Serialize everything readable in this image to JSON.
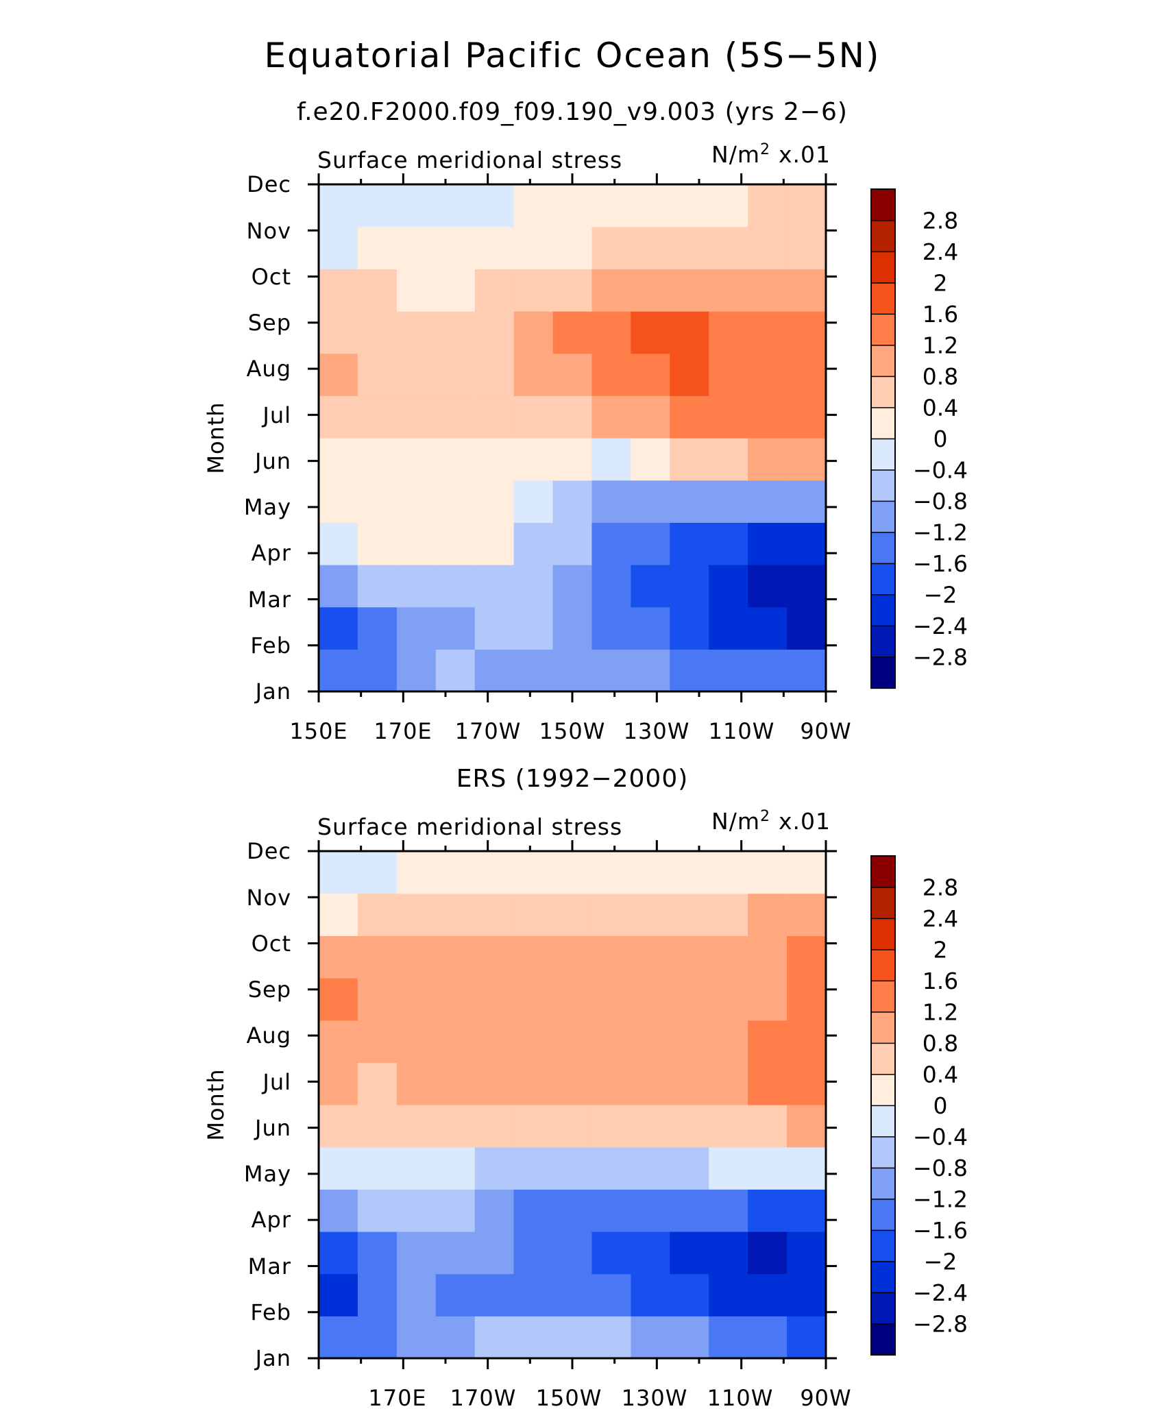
{
  "page": {
    "title": "Equatorial Pacific Ocean (5S−5N)"
  },
  "panels": [
    {
      "subtitle": "f.e20.F2000.f09_f09.190_v9.003 (yrs 2−6)",
      "left_label": "Surface meridional stress",
      "unit_base": "N/m",
      "unit_exp": "2",
      "unit_scale": "x.01",
      "ylabel": "Month",
      "x_tick_labels": [
        "150E",
        "170E",
        "170W",
        "150W",
        "130W",
        "110W",
        "90W"
      ]
    },
    {
      "subtitle": "ERS (1992−2000)",
      "left_label": "Surface meridional stress",
      "unit_base": "N/m",
      "unit_exp": "2",
      "unit_scale": "x.01",
      "ylabel": "Month",
      "x_tick_labels": [
        "170E",
        "170W",
        "150W",
        "130W",
        "110W",
        "90W"
      ]
    }
  ],
  "colorbar": {
    "colors": [
      "#000080",
      "#0018b4",
      "#0030d8",
      "#1850f0",
      "#4a78f5",
      "#7fa0f5",
      "#b3c8fa",
      "#dbe9fd",
      "#ffeedd",
      "#ffcdb2",
      "#ffa880",
      "#ff7e4a",
      "#f5521c",
      "#dc3000",
      "#b42200",
      "#8a0000"
    ],
    "tick_labels": [
      "−2.8",
      "−2.4",
      "−2",
      "−1.6",
      "−1.2",
      "−0.8",
      "−0.4",
      "0",
      "0.4",
      "0.8",
      "1.2",
      "1.6",
      "2",
      "2.4",
      "2.8"
    ]
  },
  "chart_data": [
    {
      "type": "heatmap",
      "title": "Equatorial Pacific Ocean (5S−5N)",
      "subtitle": "f.e20.F2000.f09_f09.190_v9.003 (yrs 2−6)",
      "variable": "Surface meridional stress",
      "units": "N/m^2 x.01",
      "xlabel": "",
      "ylabel": "Month",
      "x_degE": [
        150,
        160,
        170,
        180,
        190,
        200,
        210,
        220,
        230,
        240,
        250,
        260,
        270
      ],
      "x_range_degE": [
        150,
        270
      ],
      "x_ticks": [
        "150E",
        "170E",
        "170W",
        "150W",
        "130W",
        "110W",
        "90W"
      ],
      "y": [
        "Jan",
        "Feb",
        "Mar",
        "Apr",
        "May",
        "Jun",
        "Jul",
        "Aug",
        "Sep",
        "Oct",
        "Nov",
        "Dec"
      ],
      "levels": [
        -2.8,
        -2.4,
        -2,
        -1.6,
        -1.2,
        -0.8,
        -0.4,
        0,
        0.4,
        0.8,
        1.2,
        1.6,
        2,
        2.4,
        2.8
      ],
      "values": [
        [
          -1.6,
          -1.3,
          -0.9,
          -0.8,
          -0.9,
          -0.9,
          -0.9,
          -1.0,
          -1.2,
          -1.3,
          -1.4,
          -1.5,
          -1.6
        ],
        [
          -1.7,
          -1.5,
          -1.1,
          -0.9,
          -0.7,
          -0.8,
          -1.0,
          -1.3,
          -1.6,
          -1.9,
          -2.1,
          -2.3,
          -2.5
        ],
        [
          -0.9,
          -0.6,
          -0.5,
          -0.6,
          -0.5,
          -0.7,
          -1.0,
          -1.4,
          -1.7,
          -2.0,
          -2.3,
          -2.6,
          -2.7
        ],
        [
          -0.3,
          0.1,
          0.2,
          0.2,
          0.1,
          -0.5,
          -0.8,
          -1.3,
          -1.6,
          -1.8,
          -2.0,
          -2.1,
          -2.1
        ],
        [
          0.2,
          0.3,
          0.3,
          0.2,
          0.1,
          -0.3,
          -0.6,
          -0.9,
          -1.0,
          -1.0,
          -0.9,
          -0.9,
          -1.0
        ],
        [
          0.3,
          0.3,
          0.3,
          0.3,
          0.3,
          0.2,
          0.0,
          -0.1,
          0.2,
          0.5,
          0.7,
          0.8,
          0.8
        ],
        [
          0.6,
          0.4,
          0.4,
          0.4,
          0.5,
          0.6,
          0.7,
          0.9,
          1.0,
          1.3,
          1.4,
          1.5,
          1.5
        ],
        [
          0.8,
          0.6,
          0.5,
          0.5,
          0.7,
          0.8,
          1.1,
          1.3,
          1.5,
          1.6,
          1.5,
          1.5,
          1.4
        ],
        [
          0.6,
          0.5,
          0.5,
          0.5,
          0.7,
          0.8,
          1.2,
          1.5,
          1.7,
          1.6,
          1.4,
          1.3,
          1.3
        ],
        [
          0.6,
          0.4,
          0.3,
          0.3,
          0.4,
          0.5,
          0.6,
          0.8,
          0.9,
          0.9,
          0.9,
          0.9,
          0.9
        ],
        [
          -0.1,
          0.1,
          0.2,
          0.3,
          0.3,
          0.3,
          0.3,
          0.4,
          0.5,
          0.6,
          0.6,
          0.7,
          0.7
        ],
        [
          -0.2,
          -0.2,
          -0.1,
          -0.2,
          -0.2,
          0.0,
          0.2,
          0.2,
          0.3,
          0.3,
          0.3,
          0.6,
          0.7
        ]
      ]
    },
    {
      "type": "heatmap",
      "title": "ERS (1992−2000)",
      "variable": "Surface meridional stress",
      "units": "N/m^2 x.01",
      "xlabel": "",
      "ylabel": "Month",
      "x_degE": [
        150,
        160,
        170,
        180,
        190,
        200,
        210,
        220,
        230,
        240,
        250,
        260,
        270
      ],
      "x_range_degE": [
        150,
        270
      ],
      "x_ticks": [
        "170E",
        "170W",
        "150W",
        "130W",
        "110W",
        "90W"
      ],
      "y": [
        "Jan",
        "Feb",
        "Mar",
        "Apr",
        "May",
        "Jun",
        "Jul",
        "Aug",
        "Sep",
        "Oct",
        "Nov",
        "Dec"
      ],
      "levels": [
        -2.8,
        -2.4,
        -2,
        -1.6,
        -1.2,
        -0.8,
        -0.4,
        0,
        0.4,
        0.8,
        1.2,
        1.6,
        2,
        2.4,
        2.8
      ],
      "values": [
        [
          -1.5,
          -1.3,
          -0.9,
          -1.0,
          -0.8,
          -0.8,
          -0.8,
          -0.7,
          -0.9,
          -1.1,
          -1.3,
          -1.6,
          -1.9
        ],
        [
          -2.1,
          -1.6,
          -1.2,
          -1.4,
          -1.3,
          -1.3,
          -1.3,
          -1.5,
          -1.7,
          -1.9,
          -2.1,
          -2.4,
          -2.4
        ],
        [
          -2.0,
          -1.5,
          -1.0,
          -1.2,
          -1.2,
          -1.3,
          -1.4,
          -1.8,
          -2.0,
          -2.2,
          -2.3,
          -2.5,
          -2.4
        ],
        [
          -0.9,
          -0.8,
          -0.8,
          -0.8,
          -1.0,
          -1.3,
          -1.5,
          -1.5,
          -1.6,
          -1.6,
          -1.6,
          -1.8,
          -1.8
        ],
        [
          -0.1,
          -0.3,
          -0.4,
          -0.4,
          -0.5,
          -0.5,
          -0.5,
          -0.6,
          -0.5,
          -0.5,
          -0.4,
          -0.3,
          -0.2
        ],
        [
          0.6,
          0.4,
          0.5,
          0.5,
          0.6,
          0.6,
          0.5,
          0.5,
          0.6,
          0.5,
          0.4,
          0.6,
          0.8
        ],
        [
          0.9,
          0.7,
          0.8,
          0.9,
          1.0,
          1.0,
          1.0,
          0.9,
          1.0,
          1.0,
          1.0,
          1.4,
          1.5
        ],
        [
          1.0,
          0.8,
          0.9,
          1.0,
          1.1,
          1.1,
          1.0,
          1.0,
          1.1,
          1.0,
          1.1,
          1.4,
          1.4
        ],
        [
          1.4,
          1.0,
          0.8,
          1.0,
          1.1,
          1.0,
          1.0,
          1.0,
          1.0,
          0.9,
          0.9,
          1.0,
          1.3
        ],
        [
          1.0,
          0.9,
          0.8,
          0.9,
          1.1,
          1.0,
          0.9,
          0.9,
          0.9,
          0.8,
          0.8,
          0.9,
          1.2
        ],
        [
          0.3,
          0.6,
          0.6,
          0.5,
          0.5,
          0.6,
          0.6,
          0.5,
          0.6,
          0.7,
          0.6,
          0.8,
          0.8
        ],
        [
          -0.3,
          -0.2,
          0.1,
          0.0,
          0.1,
          0.2,
          0.2,
          0.1,
          0.1,
          0.3,
          0.2,
          0.2,
          0.3
        ]
      ]
    }
  ]
}
